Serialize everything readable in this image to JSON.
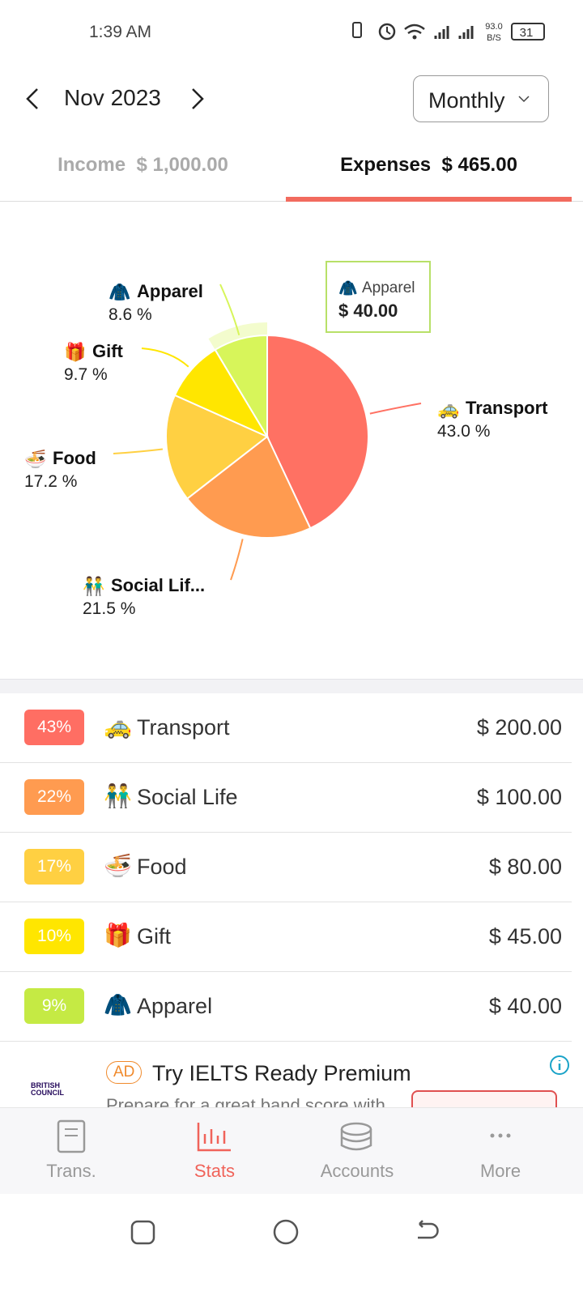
{
  "status_bar": {
    "time": "1:39 AM",
    "speed": "93.0",
    "speed_unit": "B/S",
    "battery": "31"
  },
  "header": {
    "period": "Nov 2023",
    "view": "Monthly"
  },
  "tabs": [
    {
      "label": "Income",
      "amount": "$ 1,000.00"
    },
    {
      "label": "Expenses",
      "amount": "$ 465.00"
    }
  ],
  "chart_data": {
    "type": "pie",
    "categories": [
      "Transport",
      "Social Lif...",
      "Food",
      "Gift",
      "Apparel"
    ],
    "icons": [
      "🚕",
      "👬",
      "🍜",
      "🎁",
      "🧥"
    ],
    "values": [
      43.0,
      21.5,
      17.2,
      9.7,
      8.6
    ],
    "value_labels": [
      "43.0 %",
      "21.5 %",
      "17.2 %",
      "9.7 %",
      "8.6 %"
    ],
    "colors": [
      "#ff7163",
      "#ff9b50",
      "#ffd042",
      "#ffe600",
      "#d7f55a"
    ],
    "tooltip": {
      "icon": "🧥",
      "category": "Apparel",
      "amount": "$ 40.00"
    }
  },
  "list": [
    {
      "percent": "43%",
      "icon": "🚕",
      "name": "Transport",
      "amount": "$ 200.00",
      "color": "#ff6e63"
    },
    {
      "percent": "22%",
      "icon": "👬",
      "name": "Social Life",
      "amount": "$ 100.00",
      "color": "#ff9b50"
    },
    {
      "percent": "17%",
      "icon": "🍜",
      "name": "Food",
      "amount": "$ 80.00",
      "color": "#ffd042"
    },
    {
      "percent": "10%",
      "icon": "🎁",
      "name": "Gift",
      "amount": "$ 45.00",
      "color": "#ffe600"
    },
    {
      "percent": "9%",
      "icon": "🧥",
      "name": "Apparel",
      "amount": "$ 40.00",
      "color": "#c5ea44"
    }
  ],
  "ad": {
    "brand": "BRITISH COUNCIL",
    "badge": "AD",
    "title": "Try IELTS Ready Premium",
    "text": "Prepare for a great band score with"
  },
  "nav": [
    "Trans.",
    "Stats",
    "Accounts",
    "More"
  ]
}
